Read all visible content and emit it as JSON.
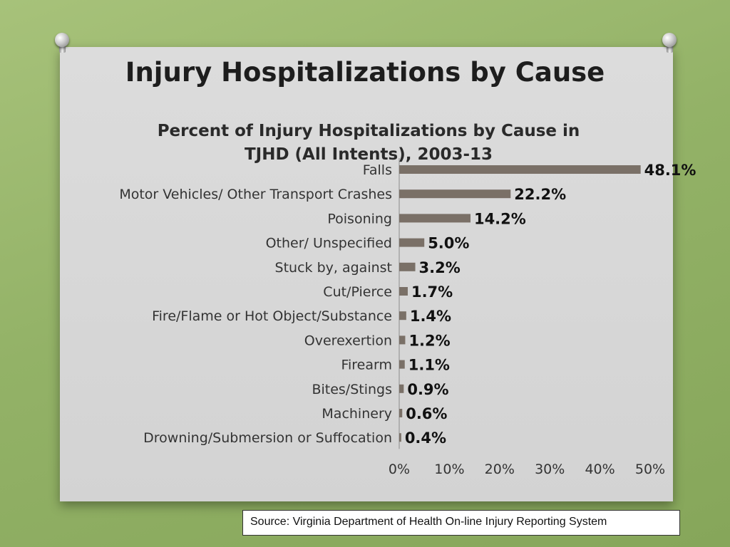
{
  "slide": {
    "title": "Injury Hospitalizations by Cause",
    "source": "Source: Virginia Department of Health On-line Injury Reporting System"
  },
  "chart_data": {
    "type": "bar",
    "orientation": "horizontal",
    "title": "Percent of Injury Hospitalizations by Cause in TJHD (All Intents), 2003-13",
    "title_lines": [
      "Percent of Injury Hospitalizations by Cause in",
      "TJHD (All Intents), 2003-13"
    ],
    "categories": [
      "Falls",
      "Motor Vehicles/ Other Transport Crashes",
      "Poisoning",
      "Other/ Unspecified",
      "Stuck by, against",
      "Cut/Pierce",
      "Fire/Flame or Hot Object/Substance",
      "Overexertion",
      "Firearm",
      "Bites/Stings",
      "Machinery",
      "Drowning/Submersion or Suffocation"
    ],
    "values": [
      48.1,
      22.2,
      14.2,
      5.0,
      3.2,
      1.7,
      1.4,
      1.2,
      1.1,
      0.9,
      0.6,
      0.4
    ],
    "data_labels": [
      "48.1%",
      "22.2%",
      "14.2%",
      "5.0%",
      "3.2%",
      "1.7%",
      "1.4%",
      "1.2%",
      "1.1%",
      "0.9%",
      "0.6%",
      "0.4%"
    ],
    "xlim": [
      0,
      50
    ],
    "xticks": [
      "0%",
      "10%",
      "20%",
      "30%",
      "40%",
      "50%"
    ],
    "bar_color": "#7a7067",
    "grid": false,
    "legend": "none"
  }
}
